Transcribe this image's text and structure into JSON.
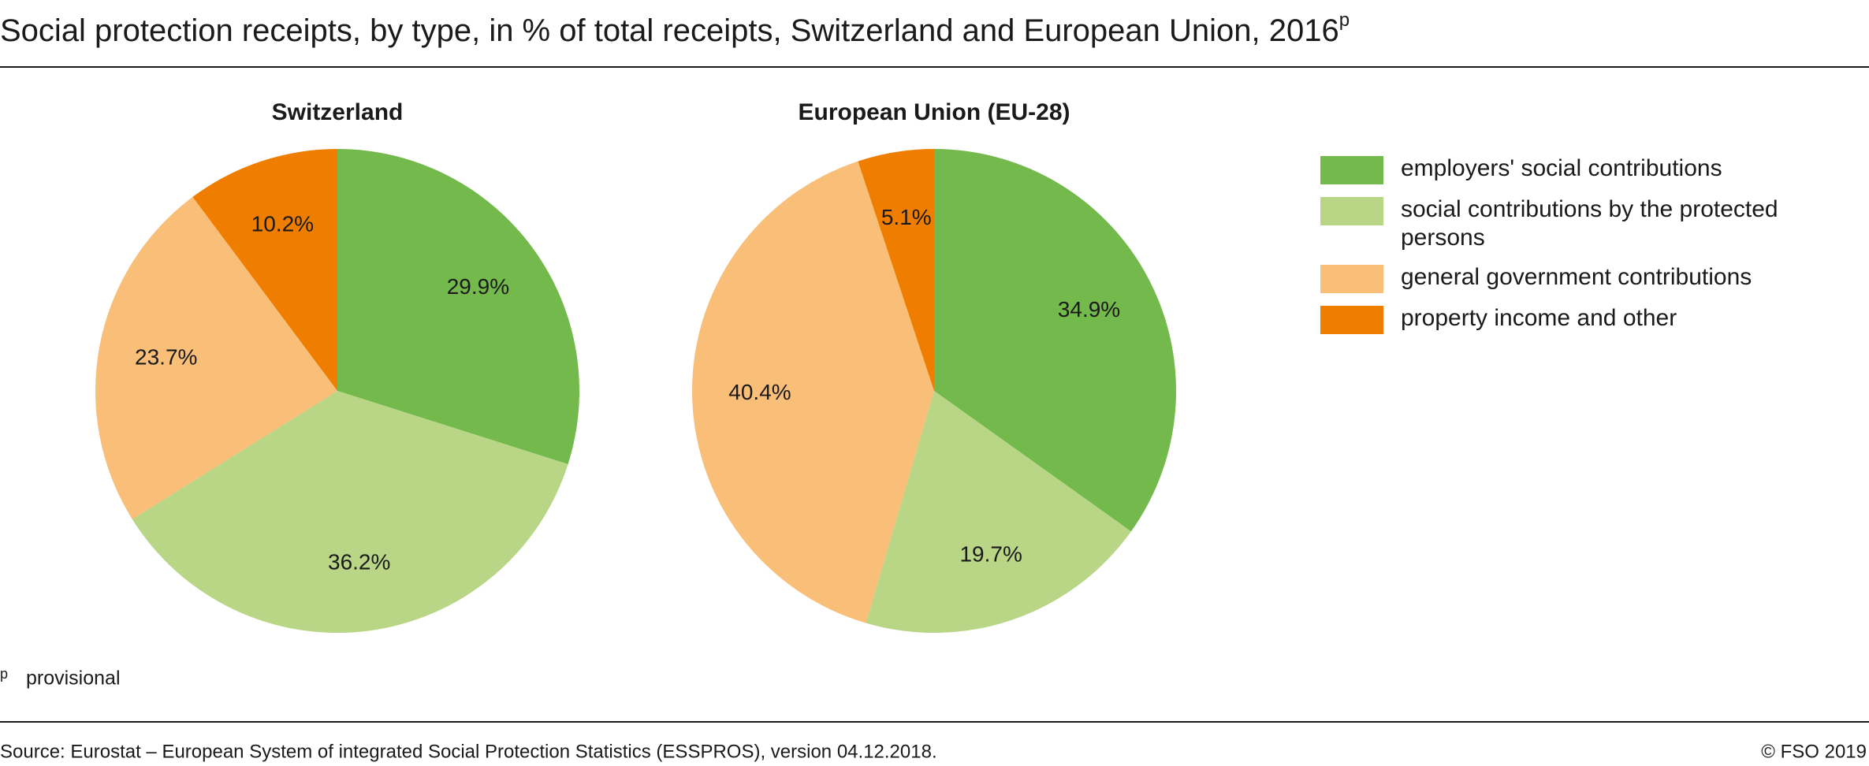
{
  "title": "Social protection receipts, by type, in % of total receipts, Switzerland and European Union, 2016",
  "title_note_mark": "p",
  "chart_data": [
    {
      "type": "pie",
      "title": "Switzerland",
      "categories": [
        "employers' social contributions",
        "social contributions by the protected persons",
        "general government contributions",
        "property income and other"
      ],
      "values": [
        29.9,
        36.2,
        23.7,
        10.2
      ],
      "value_labels": [
        "29.9%",
        "36.2%",
        "23.7%",
        "10.2%"
      ],
      "colors": [
        "#74b94c",
        "#b8d686",
        "#f9be78",
        "#ef7d00"
      ]
    },
    {
      "type": "pie",
      "title": "European Union (EU-28)",
      "categories": [
        "employers' social contributions",
        "social contributions by the protected persons",
        "general government contributions",
        "property income and other"
      ],
      "values": [
        34.9,
        19.7,
        40.4,
        5.1
      ],
      "value_labels": [
        "34.9%",
        "19.7%",
        "40.4%",
        "5.1%"
      ],
      "colors": [
        "#74b94c",
        "#b8d686",
        "#f9be78",
        "#ef7d00"
      ]
    }
  ],
  "footnote": {
    "mark": "p",
    "text": "provisional"
  },
  "source": "Source: Eurostat – European System of integrated Social Protection Statistics (ESSPROS), version  04.12.2018.",
  "copyright": "© FSO 2019"
}
